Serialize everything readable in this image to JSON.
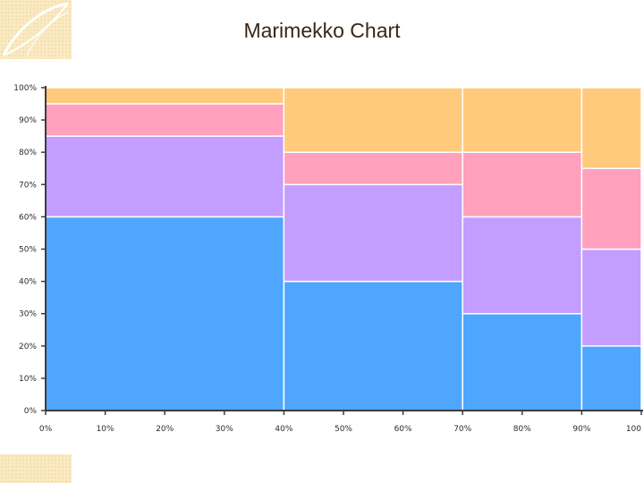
{
  "slide": {
    "title": "Marimekko Chart"
  },
  "chart_data": {
    "type": "marimekko",
    "title": "",
    "xlabel": "",
    "ylabel": "",
    "x_ticks": [
      "0%",
      "10%",
      "20%",
      "30%",
      "40%",
      "50%",
      "60%",
      "70%",
      "80%",
      "90%",
      "100"
    ],
    "y_ticks": [
      "0%",
      "10%",
      "20%",
      "30%",
      "40%",
      "50%",
      "60%",
      "70%",
      "80%",
      "90%",
      "100%"
    ],
    "xlim": [
      0,
      100
    ],
    "ylim": [
      0,
      100
    ],
    "grid": false,
    "columns": [
      {
        "x_start": 0,
        "x_end": 40,
        "segments": [
          60,
          25,
          10,
          5
        ]
      },
      {
        "x_start": 40,
        "x_end": 70,
        "segments": [
          40,
          30,
          10,
          20
        ]
      },
      {
        "x_start": 70,
        "x_end": 90,
        "segments": [
          30,
          30,
          20,
          20
        ]
      },
      {
        "x_start": 90,
        "x_end": 100,
        "segments": [
          20,
          30,
          25,
          25
        ]
      }
    ],
    "segment_colors": [
      "#4ea6ff",
      "#c39dff",
      "#ffa0bd",
      "#ffca7c"
    ]
  },
  "colors": {
    "background": "#ffffff",
    "axis": "#3c3c3c",
    "separator": "#ffffff",
    "decoration": "#f8e6b6"
  }
}
